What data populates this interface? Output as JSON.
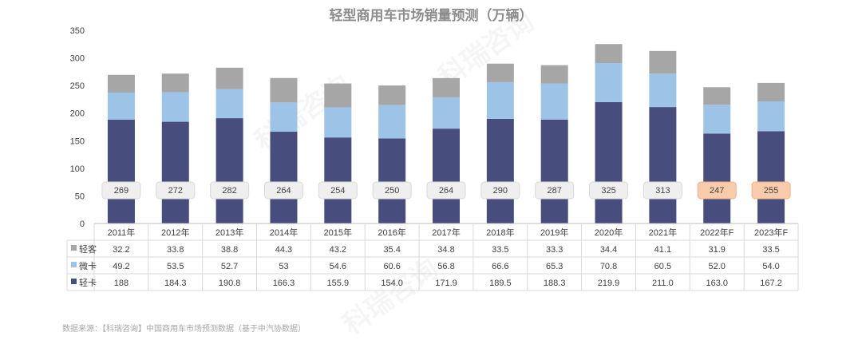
{
  "chart_data": {
    "type": "bar",
    "stacked": true,
    "title": "轻型商用车市场销量预测（万辆）",
    "categories": [
      "2011年",
      "2012年",
      "2013年",
      "2014年",
      "2015年",
      "2016年",
      "2017年",
      "2018年",
      "2019年",
      "2020年",
      "2021年",
      "2022年F",
      "2023年F"
    ],
    "series": [
      {
        "name": "轻卡",
        "color": "#474d7c",
        "values": [
          188,
          184.3,
          190.8,
          166.3,
          155.9,
          154.0,
          171.9,
          189.5,
          188.3,
          219.9,
          211.0,
          163.0,
          167.2
        ],
        "labels": [
          "188",
          "184.3",
          "190.8",
          "166.3",
          "155.9",
          "154.0",
          "171.9",
          "189.5",
          "188.3",
          "219.9",
          "211.0",
          "163.0",
          "167.2"
        ]
      },
      {
        "name": "微卡",
        "color": "#9dc3e6",
        "values": [
          49.2,
          53.5,
          52.7,
          53,
          54.6,
          60.6,
          56.8,
          66.6,
          65.3,
          70.8,
          60.5,
          52.0,
          54.0
        ],
        "labels": [
          "49.2",
          "53.5",
          "52.7",
          "53",
          "54.6",
          "60.6",
          "56.8",
          "66.6",
          "65.3",
          "70.8",
          "60.5",
          "52.0",
          "54.0"
        ]
      },
      {
        "name": "轻客",
        "color": "#a6a6a6",
        "values": [
          32.2,
          33.8,
          38.8,
          44.3,
          43.2,
          35.4,
          34.8,
          33.5,
          33.3,
          34.4,
          41.1,
          31.9,
          33.5
        ],
        "labels": [
          "32.2",
          "33.8",
          "38.8",
          "44.3",
          "43.2",
          "35.4",
          "34.8",
          "33.5",
          "33.3",
          "34.4",
          "41.1",
          "31.9",
          "33.5"
        ]
      }
    ],
    "totals": [
      "269",
      "272",
      "282",
      "264",
      "254",
      "250",
      "264",
      "290",
      "287",
      "325",
      "313",
      "247",
      "255"
    ],
    "total_highlight": [
      false,
      false,
      false,
      false,
      false,
      false,
      false,
      false,
      false,
      false,
      false,
      true,
      true
    ],
    "table_row_order": [
      "轻客",
      "微卡",
      "轻卡"
    ],
    "ylim": [
      0,
      350
    ],
    "yticks": [
      "0",
      "50",
      "100",
      "150",
      "200",
      "250",
      "300",
      "350"
    ],
    "xlabel": "",
    "ylabel": "",
    "grid": false,
    "legend": "data-table-left"
  },
  "colors": {
    "highlight_fill": "#f8cbad",
    "label_fill": "#efefef",
    "title": "#8c8c8c",
    "axis": "#595959"
  },
  "footer": {
    "source": "数据来源：【科瑞咨询】中国商用车市场预测数据（基于中汽协数据）"
  },
  "watermark": {
    "text": "科瑞咨询"
  }
}
